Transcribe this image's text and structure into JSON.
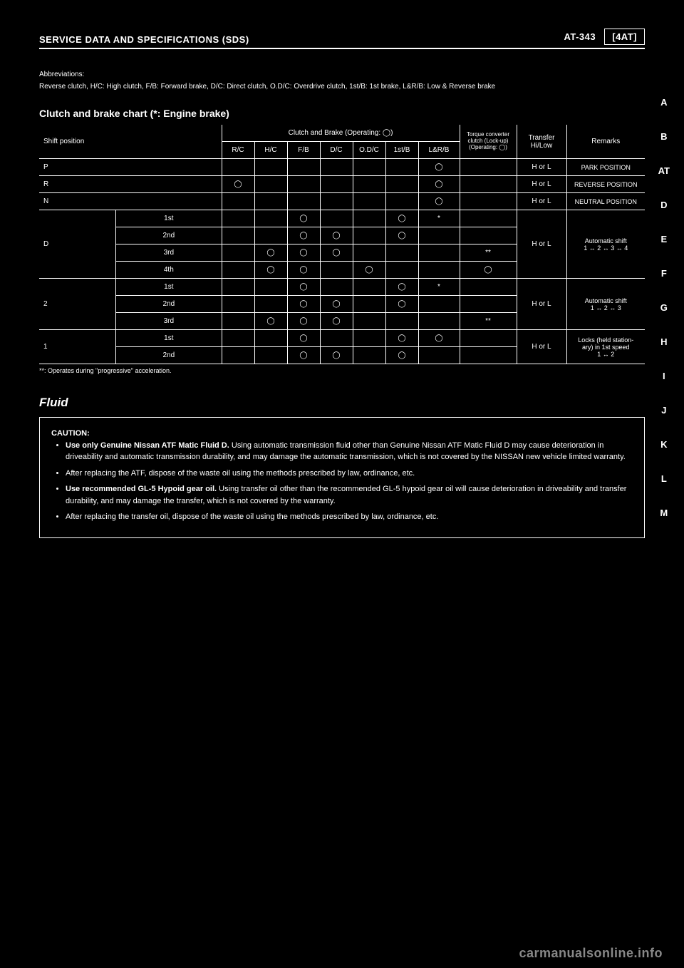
{
  "header": {
    "left": "SERVICE DATA AND SPECIFICATIONS (SDS)",
    "right_label": "AT-343",
    "badge": "[4AT]"
  },
  "section_letters": [
    "A",
    "B",
    "AT",
    "D",
    "E",
    "F",
    "G",
    "H",
    "I",
    "J",
    "K",
    "L",
    "M"
  ],
  "abbrev": {
    "label": "Abbreviations:",
    "line2": "Reverse clutch, H/C: High clutch, F/B: Forward brake, D/C: Direct clutch, O.D/C: Overdrive clutch, 1st/B: 1st brake, L&R/B: Low & Reverse brake",
    "table_title": "Clutch and brake chart (*: Engine brake)",
    "table_title_small": "*:Operates during \"progressive\" acceleration",
    "columns": {
      "shift": "Shift position",
      "clutch_brake": "Clutch and Brake (Operating: ◯)",
      "inner": [
        "R/C",
        "H/C",
        "F/B",
        "D/C",
        "O.D/C",
        "1st/B",
        "L&R/B"
      ],
      "tc_lock": "Torque converter clutch (Lock-up) (Operating: ◯)",
      "transfer": "Transfer Hi/Low",
      "remarks": "Remarks"
    },
    "rows": [
      {
        "shift": "P",
        "sub": "",
        "cells": [
          "",
          "",
          "",
          "",
          "",
          "",
          "◯"
        ],
        "tc": "",
        "tr": "H or L",
        "rem": "PARK POSITION"
      },
      {
        "shift": "R",
        "sub": "",
        "cells": [
          "◯",
          "",
          "",
          "",
          "",
          "",
          "◯"
        ],
        "tc": "",
        "tr": "H or L",
        "rem": "REVERSE POSITION"
      },
      {
        "shift": "N",
        "sub": "",
        "cells": [
          "",
          "",
          "",
          "",
          "",
          "",
          "◯"
        ],
        "tc": "",
        "tr": "H or L",
        "rem": "NEUTRAL POSITION"
      },
      {
        "shift": "D",
        "sub": "1st",
        "cells": [
          "",
          "",
          "◯",
          "",
          "",
          "◯",
          "*"
        ],
        "tc": "",
        "tr": "",
        "rem": "Automatic shift\n1 ↔ 2 ↔ 3 ↔ 4"
      },
      {
        "shift": "",
        "sub": "2nd",
        "cells": [
          "",
          "",
          "◯",
          "◯",
          "",
          "◯",
          ""
        ],
        "tc": "",
        "tr": "",
        "rem": ""
      },
      {
        "shift": "",
        "sub": "3rd",
        "cells": [
          "",
          "◯",
          "◯",
          "◯",
          "",
          "",
          ""
        ],
        "tc": "**",
        "tr": "H or L",
        "rem": ""
      },
      {
        "shift": "",
        "sub": "4th",
        "cells": [
          "",
          "◯",
          "◯",
          "",
          "◯",
          "",
          ""
        ],
        "tc": "◯",
        "tr": "",
        "rem": ""
      },
      {
        "shift": "2",
        "sub": "1st",
        "cells": [
          "",
          "",
          "◯",
          "",
          "",
          "◯",
          "*"
        ],
        "tc": "",
        "tr": "",
        "rem": "Automatic shift\n1 ↔ 2 ↔ 3"
      },
      {
        "shift": "",
        "sub": "2nd",
        "cells": [
          "",
          "",
          "◯",
          "◯",
          "",
          "◯",
          ""
        ],
        "tc": "",
        "tr": "H or L",
        "rem": ""
      },
      {
        "shift": "",
        "sub": "3rd",
        "cells": [
          "",
          "◯",
          "◯",
          "◯",
          "",
          "",
          ""
        ],
        "tc": "**",
        "tr": "",
        "rem": ""
      },
      {
        "shift": "1",
        "sub": "1st",
        "cells": [
          "",
          "",
          "◯",
          "",
          "",
          "◯",
          "◯"
        ],
        "tc": "",
        "tr": "H or L",
        "rem": "Locks (held station-\nary) in 1st speed\n1 ↔ 2"
      },
      {
        "shift": "",
        "sub": "2nd",
        "cells": [
          "",
          "",
          "◯",
          "◯",
          "",
          "◯",
          ""
        ],
        "tc": "",
        "tr": "",
        "rem": ""
      }
    ],
    "footnote": "**: Operates during \"progressive\" acceleration."
  },
  "fluid": {
    "heading": "Fluid",
    "caution_label": "CAUTION:",
    "items": [
      {
        "lead": "Use only Genuine Nissan ATF Matic Fluid D.",
        "rest": "Using automatic transmission fluid other than Genuine Nissan ATF Matic Fluid D may cause deterioration in driveability and automatic transmission durability, and may damage the automatic transmission, which is not covered by the NISSAN new vehicle limited warranty."
      },
      {
        "lead": "",
        "rest": "After replacing the ATF, dispose of the waste oil using the methods prescribed by law, ordinance, etc."
      },
      {
        "lead": "Use recommended GL-5 Hypoid gear oil.",
        "rest": "Using transfer oil other than the recommended GL-5 hypoid gear oil will cause deterioration in driveability and transfer durability, and may damage the transfer, which is not covered by the warranty."
      },
      {
        "lead": "",
        "rest": "After replacing the transfer oil, dispose of the waste oil using the methods prescribed by law, ordinance, etc."
      }
    ]
  },
  "watermark": "carmanualsonline.info"
}
